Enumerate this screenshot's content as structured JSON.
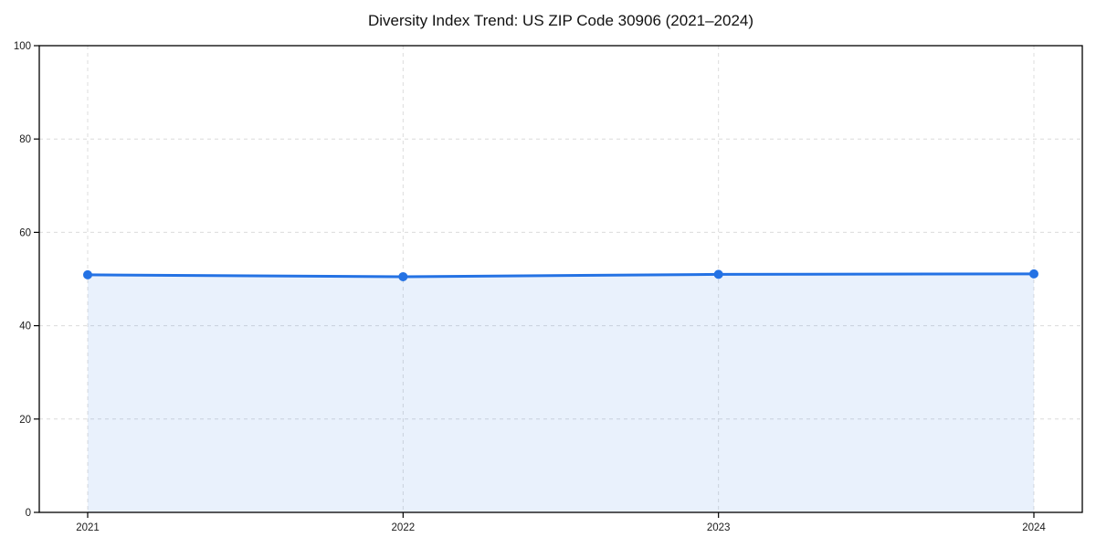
{
  "chart_data": {
    "type": "line",
    "title": "Diversity Index Trend: US ZIP Code 30906 (2021–2024)",
    "categories": [
      "2021",
      "2022",
      "2023",
      "2024"
    ],
    "series": [
      {
        "name": "Diversity Index",
        "values": [
          50.9,
          50.5,
          51.0,
          51.1
        ]
      }
    ],
    "xlabel": "",
    "ylabel": "",
    "ylim": [
      0,
      100
    ],
    "yticks": [
      0,
      20,
      40,
      60,
      80,
      100
    ],
    "grid": true,
    "legend": "none",
    "area_fill": true,
    "marker": "circle",
    "colors": {
      "line": "#2472e4",
      "fill": "#2472e4",
      "fill_opacity": 0.1,
      "grid": "#dcdcdc",
      "axis": "#000000",
      "text": "#1a1a1a",
      "background": "#ffffff"
    }
  }
}
